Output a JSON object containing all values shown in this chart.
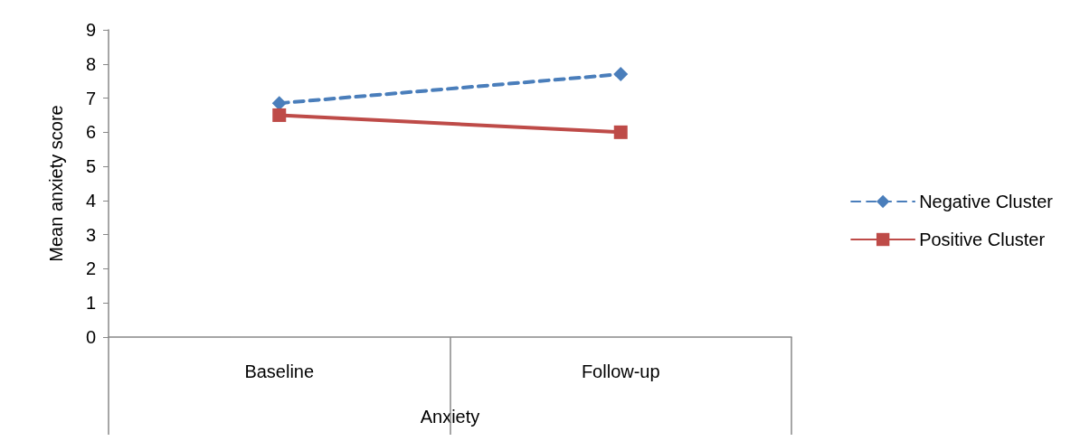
{
  "chart_data": {
    "type": "line",
    "xlabel": "Anxiety",
    "ylabel": "Mean anxiety score",
    "categories": [
      "Baseline",
      "Follow-up"
    ],
    "series": [
      {
        "name": "Negative Cluster",
        "color": "#4a7ebb",
        "values": [
          6.85,
          7.7
        ],
        "marker": "diamond",
        "line_style": "dashed"
      },
      {
        "name": "Positive Cluster",
        "color": "#be4b48",
        "values": [
          6.5,
          6.0
        ],
        "marker": "square",
        "line_style": "solid"
      }
    ],
    "ylim": [
      0,
      9
    ],
    "yticks": [
      0,
      1,
      2,
      3,
      4,
      5,
      6,
      7,
      8,
      9
    ],
    "grid": false,
    "legend": "right"
  }
}
